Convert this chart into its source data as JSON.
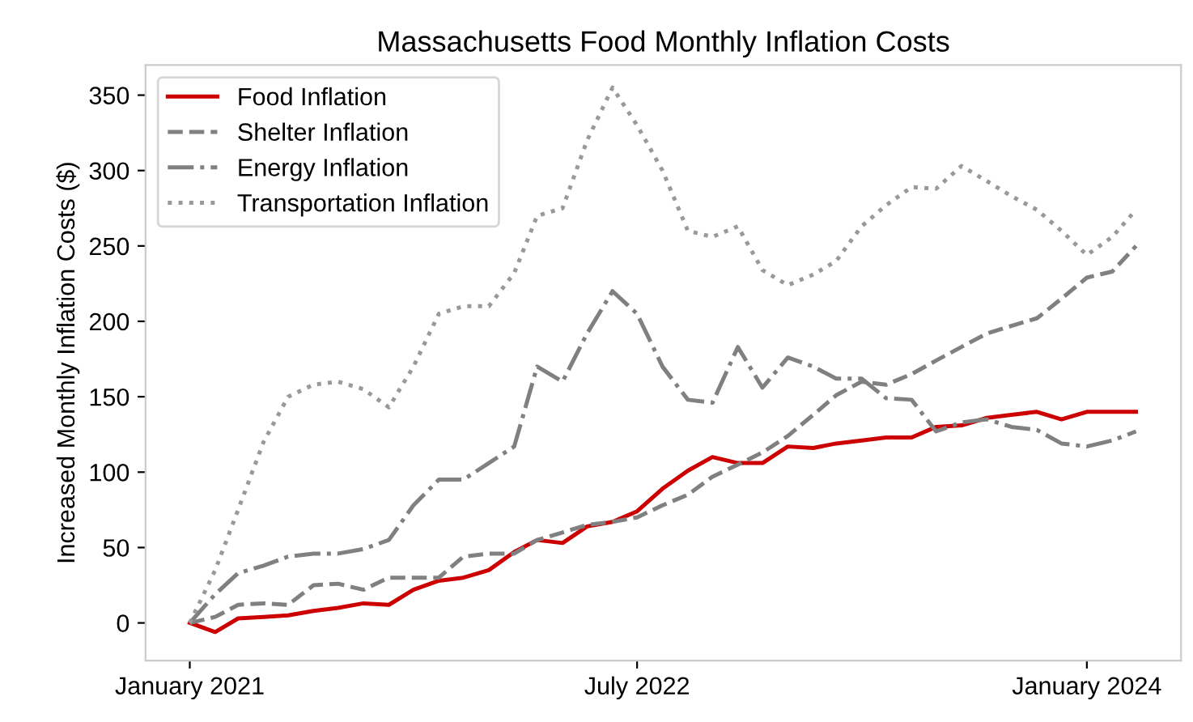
{
  "chart_data": {
    "type": "line",
    "title": "Massachusetts Food Monthly Inflation Costs",
    "ylabel": "Increased Monthly Inflation Costs ($)",
    "x": [
      "2021-01",
      "2021-02",
      "2021-03",
      "2021-04",
      "2021-05",
      "2021-06",
      "2021-07",
      "2021-08",
      "2021-09",
      "2021-10",
      "2021-11",
      "2021-12",
      "2022-01",
      "2022-02",
      "2022-03",
      "2022-04",
      "2022-05",
      "2022-06",
      "2022-07",
      "2022-08",
      "2022-09",
      "2022-10",
      "2022-11",
      "2022-12",
      "2023-01",
      "2023-02",
      "2023-03",
      "2023-04",
      "2023-05",
      "2023-06",
      "2023-07",
      "2023-08",
      "2023-09",
      "2023-10",
      "2023-11",
      "2023-12",
      "2024-01",
      "2024-02",
      "2024-03"
    ],
    "series": [
      {
        "name": "Food Inflation",
        "color": "#cc0000",
        "line_style": "solid",
        "values": [
          0,
          -6,
          3,
          4,
          5,
          8,
          10,
          13,
          12,
          22,
          28,
          30,
          35,
          47,
          55,
          53,
          64,
          67,
          74,
          89,
          101,
          110,
          106,
          106,
          117,
          116,
          119,
          121,
          123,
          123,
          130,
          131,
          136,
          138,
          140,
          135,
          140,
          140,
          140
        ]
      },
      {
        "name": "Shelter Inflation",
        "color": "#808080",
        "line_style": "dashed",
        "values": [
          0,
          4,
          12,
          13,
          12,
          25,
          26,
          22,
          30,
          30,
          30,
          44,
          46,
          46,
          55,
          60,
          65,
          67,
          70,
          78,
          85,
          97,
          105,
          113,
          124,
          138,
          151,
          160,
          158,
          165,
          174,
          183,
          192,
          197,
          202,
          215,
          229,
          233,
          250
        ]
      },
      {
        "name": "Energy Inflation",
        "color": "#808080",
        "line_style": "dashdot",
        "values": [
          0,
          19,
          33,
          38,
          44,
          46,
          46,
          49,
          55,
          78,
          95,
          95,
          106,
          117,
          170,
          160,
          192,
          220,
          205,
          170,
          148,
          146,
          183,
          156,
          176,
          170,
          162,
          162,
          149,
          148,
          127,
          133,
          135,
          130,
          128,
          119,
          117,
          121,
          127
        ]
      },
      {
        "name": "Transportation Inflation",
        "color": "#999999",
        "line_style": "dotted",
        "values": [
          0,
          35,
          75,
          120,
          150,
          158,
          160,
          155,
          143,
          170,
          205,
          210,
          210,
          232,
          270,
          275,
          320,
          355,
          330,
          300,
          260,
          256,
          263,
          234,
          224,
          231,
          240,
          263,
          277,
          289,
          288,
          303,
          293,
          283,
          274,
          260,
          244,
          256,
          274
        ]
      }
    ],
    "xlim": [
      "2020-11-08",
      "2024-04-25"
    ],
    "xticks": [
      {
        "value": "2021-01",
        "label": "January 2021"
      },
      {
        "value": "2022-07",
        "label": "July 2022"
      },
      {
        "value": "2024-01",
        "label": "January 2024"
      }
    ],
    "ylim": [
      -25,
      370
    ],
    "yticks": [
      0,
      50,
      100,
      150,
      200,
      250,
      300,
      350
    ],
    "legend": "top left",
    "grid": false
  }
}
